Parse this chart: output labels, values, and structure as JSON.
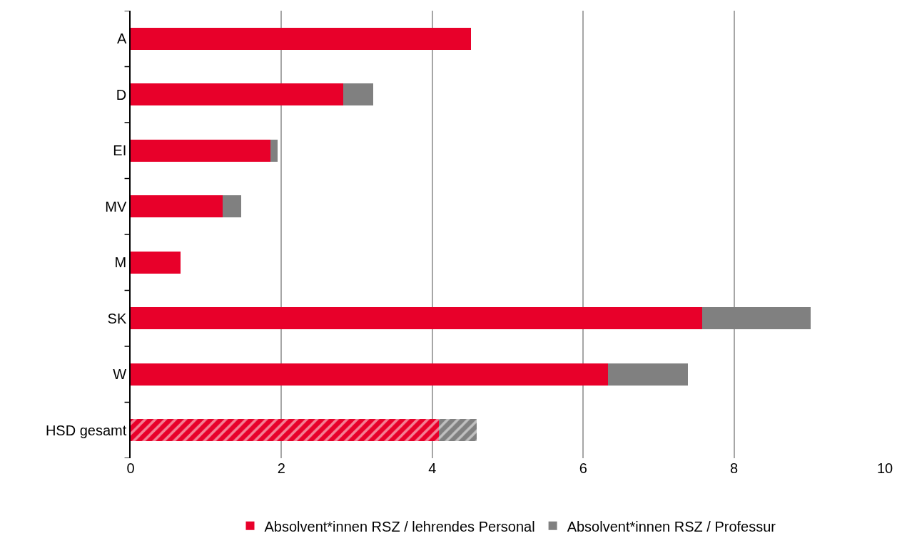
{
  "chart_data": {
    "type": "bar",
    "orientation": "horizontal",
    "stacked": true,
    "categories": [
      "A",
      "D",
      "EI",
      "MV",
      "M",
      "SK",
      "W",
      "HSD gesamt"
    ],
    "series": [
      {
        "name": "Absolvent*innen RSZ / lehrendes Personal",
        "color": "#e8002a",
        "values": [
          4.51,
          2.82,
          1.85,
          1.22,
          0.66,
          7.58,
          6.33,
          4.09
        ]
      },
      {
        "name": "Absolvent*innen RSZ / Professur",
        "color": "#808080",
        "values": [
          null,
          0.4,
          0.1,
          0.25,
          null,
          1.44,
          1.06,
          0.5
        ]
      }
    ],
    "xlim": [
      0,
      10
    ],
    "xticks": [
      0,
      2,
      4,
      6,
      8,
      10
    ],
    "grid": "x",
    "legend": "bottom"
  }
}
